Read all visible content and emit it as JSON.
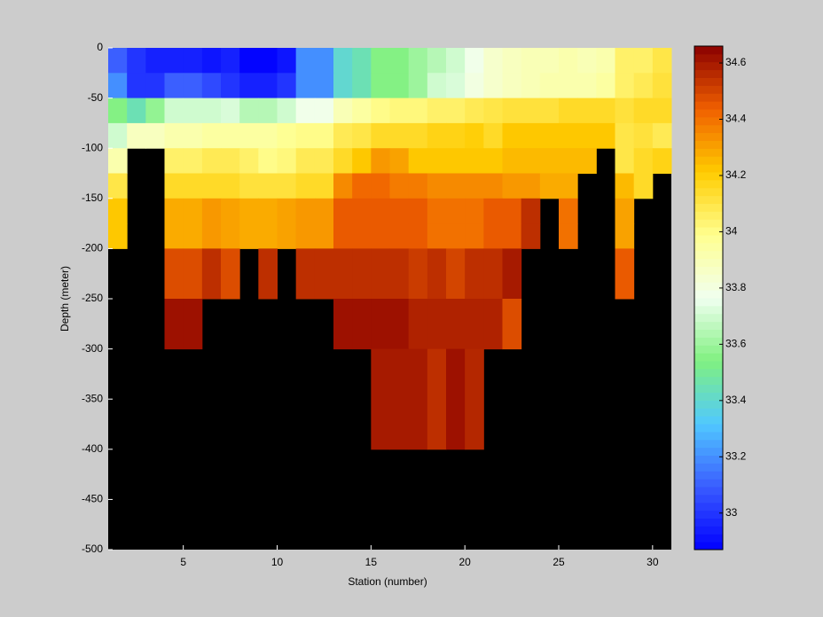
{
  "chart_data": {
    "type": "heatmap",
    "xlabel": "Station (number)",
    "ylabel": "Depth (meter)",
    "x": [
      1,
      2,
      3,
      4,
      5,
      6,
      7,
      8,
      9,
      10,
      11,
      12,
      13,
      14,
      15,
      16,
      17,
      18,
      19,
      20,
      21,
      22,
      23,
      24,
      25,
      26,
      27,
      28,
      29,
      30,
      31
    ],
    "y": [
      0,
      -25,
      -50,
      -75,
      -100,
      -125,
      -150,
      -175,
      -200,
      -250,
      -300,
      -400
    ],
    "z": [
      [
        33.1,
        33.0,
        32.95,
        32.95,
        32.95,
        32.92,
        32.95,
        32.88,
        32.88,
        32.92,
        33.2,
        33.2,
        33.4,
        33.45,
        33.55,
        33.55,
        33.6,
        33.65,
        33.7,
        33.78,
        33.85,
        33.88,
        33.9,
        33.9,
        33.92,
        33.9,
        33.92,
        34.05,
        34.05,
        34.1
      ],
      [
        33.2,
        33.0,
        33.0,
        33.1,
        33.1,
        33.05,
        33.0,
        32.95,
        32.95,
        33.0,
        33.2,
        33.2,
        33.4,
        33.45,
        33.55,
        33.55,
        33.6,
        33.7,
        33.72,
        33.8,
        33.85,
        33.88,
        33.9,
        33.92,
        33.92,
        33.92,
        33.95,
        34.05,
        34.08,
        34.12
      ],
      [
        33.55,
        33.45,
        33.58,
        33.7,
        33.7,
        33.7,
        33.72,
        33.65,
        33.65,
        33.7,
        33.78,
        33.78,
        33.9,
        33.95,
        34.0,
        34.02,
        34.02,
        34.05,
        34.05,
        34.08,
        34.1,
        34.12,
        34.12,
        34.12,
        34.15,
        34.15,
        34.15,
        34.12,
        34.15,
        34.15
      ],
      [
        33.7,
        33.88,
        33.88,
        33.92,
        33.92,
        33.95,
        33.95,
        33.95,
        33.95,
        33.98,
        34.0,
        34.0,
        34.08,
        34.1,
        34.15,
        34.15,
        34.15,
        34.18,
        34.18,
        34.2,
        34.15,
        34.22,
        34.22,
        34.22,
        34.22,
        34.22,
        34.22,
        34.1,
        34.12,
        34.08
      ],
      [
        33.92,
        null,
        null,
        34.05,
        34.05,
        34.08,
        34.08,
        34.05,
        34.0,
        34.02,
        34.08,
        34.08,
        34.15,
        34.22,
        34.32,
        34.3,
        34.22,
        34.22,
        34.22,
        34.22,
        34.22,
        34.25,
        34.25,
        34.25,
        34.25,
        34.25,
        null,
        34.1,
        34.15,
        34.18
      ],
      [
        34.1,
        null,
        null,
        34.15,
        34.15,
        34.15,
        34.15,
        34.12,
        34.12,
        34.12,
        34.15,
        34.15,
        34.35,
        34.42,
        34.42,
        34.38,
        34.38,
        34.35,
        34.35,
        34.35,
        34.35,
        34.32,
        34.32,
        34.28,
        34.28,
        null,
        null,
        34.25,
        34.15,
        null
      ],
      [
        34.22,
        null,
        null,
        34.28,
        34.28,
        34.32,
        34.3,
        34.28,
        34.28,
        34.3,
        34.32,
        34.32,
        34.45,
        34.45,
        34.45,
        34.45,
        34.45,
        34.4,
        34.4,
        34.4,
        34.45,
        34.45,
        34.55,
        null,
        34.4,
        null,
        null,
        34.3,
        null,
        null
      ],
      [
        34.22,
        null,
        null,
        34.28,
        34.28,
        34.32,
        34.3,
        34.28,
        34.28,
        34.3,
        34.32,
        34.32,
        34.45,
        34.45,
        34.45,
        34.45,
        34.45,
        34.4,
        34.4,
        34.4,
        34.45,
        34.45,
        34.55,
        null,
        34.4,
        null,
        null,
        34.3,
        null,
        null
      ],
      [
        null,
        null,
        null,
        34.48,
        34.48,
        34.55,
        34.48,
        null,
        34.55,
        null,
        34.55,
        34.55,
        34.55,
        34.55,
        34.55,
        34.55,
        34.52,
        34.55,
        34.5,
        34.55,
        34.55,
        34.6,
        null,
        null,
        null,
        null,
        null,
        34.45,
        null,
        null
      ],
      [
        null,
        null,
        null,
        34.62,
        34.62,
        null,
        null,
        null,
        null,
        null,
        null,
        null,
        34.62,
        34.62,
        34.62,
        34.62,
        34.58,
        34.58,
        34.58,
        34.58,
        34.58,
        34.48,
        null,
        null,
        null,
        null,
        null,
        null,
        null,
        null
      ],
      [
        null,
        null,
        null,
        null,
        null,
        null,
        null,
        null,
        null,
        null,
        null,
        null,
        null,
        null,
        34.6,
        34.6,
        34.6,
        34.55,
        34.62,
        34.57,
        null,
        null,
        null,
        null,
        null,
        null,
        null,
        null,
        null,
        null
      ]
    ],
    "xlim": [
      1,
      31
    ],
    "xticks": [
      5,
      10,
      15,
      20,
      25,
      30
    ],
    "ylim": [
      -500,
      0
    ],
    "yticks": [
      -500,
      -450,
      -400,
      -350,
      -300,
      -250,
      -200,
      -150,
      -100,
      -50,
      0
    ],
    "clim": [
      32.87,
      34.66
    ],
    "cticks": [
      33,
      33.2,
      33.4,
      33.6,
      33.8,
      34,
      34.2,
      34.4,
      34.6
    ],
    "colormap": [
      "#0000ff",
      "#3a5cff",
      "#50c8ff",
      "#80f080",
      "#f0fff0",
      "#ffff90",
      "#ffcc00",
      "#f06000",
      "#8b0000"
    ],
    "background": "#000000"
  }
}
